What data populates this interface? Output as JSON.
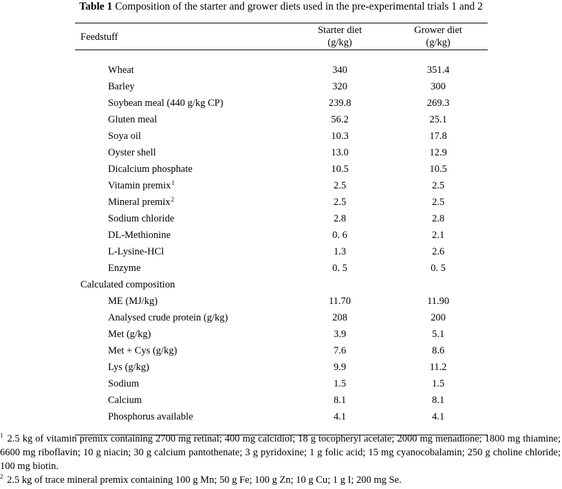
{
  "caption": {
    "lead": "Table 1",
    "text": " Composition of the starter and grower diets used in the pre-experimental trials 1 and 2"
  },
  "header": {
    "feedstuff": "Feedstuff",
    "starter": [
      "Starter diet",
      "(g/kg)"
    ],
    "grower": [
      "Grower diet",
      "(g/kg)"
    ]
  },
  "rows": [
    {
      "label": "Wheat",
      "sup": "",
      "starter": "340",
      "grower": "351.4",
      "section": false
    },
    {
      "label": "Barley",
      "sup": "",
      "starter": "320",
      "grower": "300",
      "section": false
    },
    {
      "label": "Soybean meal (440 g/kg CP)",
      "sup": "",
      "starter": "239.8",
      "grower": "269.3",
      "section": false
    },
    {
      "label": "Gluten meal",
      "sup": "",
      "starter": "56.2",
      "grower": "25.1",
      "section": false
    },
    {
      "label": "Soya oil",
      "sup": "",
      "starter": "10.3",
      "grower": "17.8",
      "section": false
    },
    {
      "label": "Oyster shell",
      "sup": "",
      "starter": "13.0",
      "grower": "12.9",
      "section": false
    },
    {
      "label": "Dicalcium phosphate",
      "sup": "",
      "starter": "10.5",
      "grower": "10.5",
      "section": false
    },
    {
      "label": "Vitamin premix",
      "sup": "1",
      "starter": "2.5",
      "grower": "2.5",
      "section": false
    },
    {
      "label": "Mineral premix",
      "sup": "2",
      "starter": "2.5",
      "grower": "2.5",
      "section": false
    },
    {
      "label": "Sodium chloride",
      "sup": "",
      "starter": "2.8",
      "grower": "2.8",
      "section": false
    },
    {
      "label": "DL-Methionine",
      "sup": "",
      "starter": "0. 6",
      "grower": "2.1",
      "section": false
    },
    {
      "label": "L-Lysine-HCl",
      "sup": "",
      "starter": "1.3",
      "grower": "2.6",
      "section": false
    },
    {
      "label": "Enzyme",
      "sup": "",
      "starter": "0. 5",
      "grower": "0. 5",
      "section": false
    },
    {
      "label": "Calculated composition",
      "sup": "",
      "starter": "",
      "grower": "",
      "section": true
    },
    {
      "label": "ME (MJ/kg)",
      "sup": "",
      "starter": "11.70",
      "grower": "11.90",
      "section": false
    },
    {
      "label": "Analysed crude protein (g/kg)",
      "sup": "",
      "starter": "208",
      "grower": "200",
      "section": false
    },
    {
      "label": "Met (g/kg)",
      "sup": "",
      "starter": "3.9",
      "grower": "5.1",
      "section": false
    },
    {
      "label": "Met + Cys (g/kg)",
      "sup": "",
      "starter": "7.6",
      "grower": "8.6",
      "section": false
    },
    {
      "label": "Lys (g/kg)",
      "sup": "",
      "starter": "9.9",
      "grower": "11.2",
      "section": false
    },
    {
      "label": "Sodium",
      "sup": "",
      "starter": "1.5",
      "grower": "1.5",
      "section": false
    },
    {
      "label": "Calcium",
      "sup": "",
      "starter": "8.1",
      "grower": "8.1",
      "section": false
    },
    {
      "label": "Phosphorus available",
      "sup": "",
      "starter": "4.1",
      "grower": "4.1",
      "section": false
    }
  ],
  "footnotes": [
    {
      "mark": "1",
      "text": " 2.5 kg of vitamin premix containing 2700 mg retinal; 400 mg calcidiol; 18 g tocopheryl acetate; 2000 mg menadione; 1800 mg thiamine; 6600 mg riboflavin; 10 g niacin; 30 g calcium pantothenate; 3 g pyridoxine; 1 g folic acid; 15 mg cyanocobalamin; 250 g choline chloride; 100 mg biotin."
    },
    {
      "mark": "2",
      "text": " 2.5 kg of trace mineral premix containing 100 g Mn; 50 g Fe; 100 g Zn; 10 g Cu; 1 g I; 200 mg Se."
    }
  ]
}
